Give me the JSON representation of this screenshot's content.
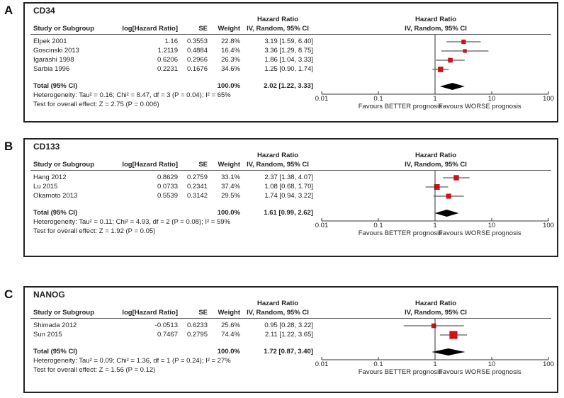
{
  "chart_data": [
    {
      "type": "forest",
      "panel_letter": "A",
      "title": "CD34",
      "columns": {
        "study": "Study or Subgroup",
        "log_hr": "log[Hazard Ratio]",
        "se": "SE",
        "weight": "Weight",
        "hr_top": "Hazard Ratio",
        "hr_bottom": "IV, Random, 95% CI",
        "plot_top": "Hazard Ratio",
        "plot_bottom": "IV, Random, 95% CI"
      },
      "studies": [
        {
          "name": "Elpek 2001",
          "log_hr": "1.16",
          "se": "0.3553",
          "weight": "22.8%",
          "weight_value": 22.8,
          "hr_text": "3.19 [1.59, 6.40]",
          "hr": 3.19,
          "lo": 1.59,
          "hi": 6.4
        },
        {
          "name": "Goscinski 2013",
          "log_hr": "1.2119",
          "se": "0.4884",
          "weight": "16.4%",
          "weight_value": 16.4,
          "hr_text": "3.36 [1.29, 8.75]",
          "hr": 3.36,
          "lo": 1.29,
          "hi": 8.75
        },
        {
          "name": "Igarashi 1998",
          "log_hr": "0.6206",
          "se": "0.2966",
          "weight": "26.3%",
          "weight_value": 26.3,
          "hr_text": "1.86 [1.04, 3.33]",
          "hr": 1.86,
          "lo": 1.04,
          "hi": 3.33
        },
        {
          "name": "Sarbia 1996",
          "log_hr": "0.2231",
          "se": "0.1676",
          "weight": "34.6%",
          "weight_value": 34.6,
          "hr_text": "1.25 [0.90, 1.74]",
          "hr": 1.25,
          "lo": 0.9,
          "hi": 1.74
        }
      ],
      "total": {
        "label": "Total (95% CI)",
        "weight": "100.0%",
        "hr_text": "2.02 [1.22, 3.33]",
        "hr": 2.02,
        "lo": 1.22,
        "hi": 3.33
      },
      "heterogeneity": "Heterogeneity: Tau² = 0.16; Chi² = 8.47, df = 3 (P = 0.04); I² = 65%",
      "overall_effect": "Test for overall effect: Z = 2.75 (P = 0.006)",
      "x_scale": "log",
      "xlim": [
        0.01,
        100
      ],
      "x_ticks": [
        "0.01",
        "0.1",
        "1",
        "10",
        "100"
      ],
      "favours_left": "Favours BETTER prognosis",
      "favours_right": "Favours WORSE prognosis"
    },
    {
      "type": "forest",
      "panel_letter": "B",
      "title": "CD133",
      "columns": {
        "study": "Study or Subgroup",
        "log_hr": "log[Hazard Ratio]",
        "se": "SE",
        "weight": "Weight",
        "hr_top": "Hazard Ratio",
        "hr_bottom": "IV, Random, 95% CI",
        "plot_top": "Hazard Ratio",
        "plot_bottom": "IV, Random, 95% CI"
      },
      "studies": [
        {
          "name": "Hang 2012",
          "log_hr": "0.8629",
          "se": "0.2759",
          "weight": "33.1%",
          "weight_value": 33.1,
          "hr_text": "2.37 [1.38, 4.07]",
          "hr": 2.37,
          "lo": 1.38,
          "hi": 4.07
        },
        {
          "name": "Lu 2015",
          "log_hr": "0.0733",
          "se": "0.2341",
          "weight": "37.4%",
          "weight_value": 37.4,
          "hr_text": "1.08 [0.68, 1.70]",
          "hr": 1.08,
          "lo": 0.68,
          "hi": 1.7
        },
        {
          "name": "Okamoto 2013",
          "log_hr": "0.5539",
          "se": "0.3142",
          "weight": "29.5%",
          "weight_value": 29.5,
          "hr_text": "1.74 [0.94, 3.22]",
          "hr": 1.74,
          "lo": 0.94,
          "hi": 3.22
        }
      ],
      "total": {
        "label": "Total (95% CI)",
        "weight": "100.0%",
        "hr_text": "1.61 [0.99, 2.62]",
        "hr": 1.61,
        "lo": 0.99,
        "hi": 2.62
      },
      "heterogeneity": "Heterogeneity: Tau² = 0.11; Chi² = 4.93, df = 2 (P = 0.08); I² = 59%",
      "overall_effect": "Test for overall effect: Z = 1.92 (P = 0.05)",
      "x_scale": "log",
      "xlim": [
        0.01,
        100
      ],
      "x_ticks": [
        "0.01",
        "0.1",
        "1",
        "10",
        "100"
      ],
      "favours_left": "Favours BETTER prognosis",
      "favours_right": "Favours WORSE prognosis"
    },
    {
      "type": "forest",
      "panel_letter": "C",
      "title": "NANOG",
      "columns": {
        "study": "Study or Subgroup",
        "log_hr": "log[Hazard Ratio]",
        "se": "SE",
        "weight": "Weight",
        "hr_top": "Hazard Ratio",
        "hr_bottom": "IV, Random, 95% CI",
        "plot_top": "Hazard Ratio",
        "plot_bottom": "IV, Random, 95% CI"
      },
      "studies": [
        {
          "name": "Shimada 2012",
          "log_hr": "-0.0513",
          "se": "0.6233",
          "weight": "25.6%",
          "weight_value": 25.6,
          "hr_text": "0.95 [0.28, 3.22]",
          "hr": 0.95,
          "lo": 0.28,
          "hi": 3.22
        },
        {
          "name": "Sun 2015",
          "log_hr": "0.7467",
          "se": "0.2795",
          "weight": "74.4%",
          "weight_value": 74.4,
          "hr_text": "2.11 [1.22, 3.65]",
          "hr": 2.11,
          "lo": 1.22,
          "hi": 3.65
        }
      ],
      "total": {
        "label": "Total (95% CI)",
        "weight": "100.0%",
        "hr_text": "1.72 [0.87, 3.40]",
        "hr": 1.72,
        "lo": 0.87,
        "hi": 3.4
      },
      "heterogeneity": "Heterogeneity: Tau² = 0.09; Chi² = 1.36, df = 1 (P = 0.24); I² = 27%",
      "overall_effect": "Test for overall effect: Z = 1.56 (P = 0.12)",
      "x_scale": "log",
      "xlim": [
        0.01,
        100
      ],
      "x_ticks": [
        "0.01",
        "0.1",
        "1",
        "10",
        "100"
      ],
      "favours_left": "Favours BETTER prognosis",
      "favours_right": "Favours WORSE prognosis"
    }
  ],
  "colors": {
    "marker": "#d0101a",
    "diamond": "#000000",
    "axis": "#333333"
  }
}
